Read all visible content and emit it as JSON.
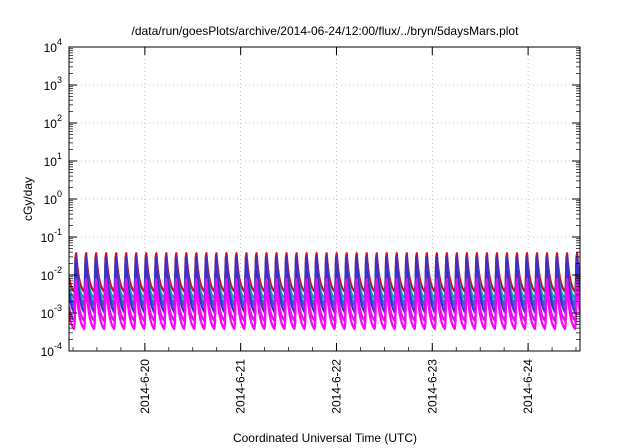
{
  "chart_data": {
    "type": "line",
    "title": "/data/run/goesPlots/archive/2014-06-24/12:00/flux/../bryn/5daysMars.plot",
    "xlabel": "Coordinated Universal Time (UTC)",
    "ylabel": "cGy/day",
    "y_scale": "log",
    "ylim": [
      0.0001,
      10000
    ],
    "y_ticks": [
      {
        "base": "10",
        "exp": "-4"
      },
      {
        "base": "10",
        "exp": "-3"
      },
      {
        "base": "10",
        "exp": "-2"
      },
      {
        "base": "10",
        "exp": "-1"
      },
      {
        "base": "10",
        "exp": "0"
      },
      {
        "base": "10",
        "exp": "1"
      },
      {
        "base": "10",
        "exp": "2"
      },
      {
        "base": "10",
        "exp": "3"
      },
      {
        "base": "10",
        "exp": "4"
      }
    ],
    "xlim": [
      "2014-06-19 05:00",
      "2014-06-24 13:00"
    ],
    "x_ticks": [
      "2014-6-20",
      "2014-6-21",
      "2014-6-22",
      "2014-6-23",
      "2014-6-24"
    ],
    "grid": true,
    "legend": "none",
    "oscillation": {
      "cycles_per_day": 9.5,
      "cycles_total": 51
    },
    "series": [
      {
        "color": "#ff00ff",
        "peak": 0.009,
        "trough": 0.0003
      },
      {
        "color": "#cc22dd",
        "peak": 0.012,
        "trough": 0.0005
      },
      {
        "color": "#3a2fd0",
        "peak": 0.05,
        "trough": 0.0008
      },
      {
        "color": "#2a72cc",
        "peak": 0.045,
        "trough": 0.0012
      },
      {
        "color": "#00b0b0",
        "peak": 0.03,
        "trough": 0.002
      },
      {
        "color": "#7a3a90",
        "peak": 0.02,
        "trough": 0.0015
      },
      {
        "color": "#cc1020",
        "peak": 0.055,
        "trough": 0.003
      }
    ]
  }
}
